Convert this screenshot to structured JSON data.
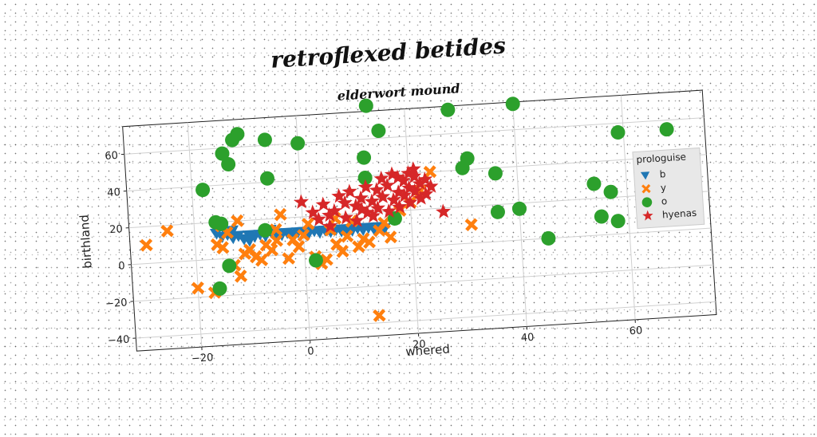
{
  "chart_data": {
    "type": "scatter",
    "title": "retroflexed betides",
    "subtitle": "elderwort mound",
    "xlabel": "whered",
    "ylabel": "birthland",
    "xlim": [
      -32,
      75
    ],
    "ylim": [
      -47,
      75
    ],
    "xticks": [
      -20,
      0,
      20,
      40,
      60
    ],
    "yticks": [
      -40,
      -20,
      0,
      20,
      40,
      60
    ],
    "grid": true,
    "legend": {
      "title": "prologuise",
      "placement": "right"
    },
    "series": [
      {
        "name": "b",
        "marker": "triangle-down",
        "color": "#1f77b4",
        "points": [
          [
            -16,
            14
          ],
          [
            -15,
            12
          ],
          [
            -14,
            13
          ],
          [
            -13,
            11
          ],
          [
            -12,
            12
          ],
          [
            -11,
            10
          ],
          [
            -10,
            12
          ],
          [
            -9,
            11
          ],
          [
            -8,
            12
          ],
          [
            -7,
            11
          ],
          [
            -6,
            13
          ],
          [
            -5,
            12
          ],
          [
            -4,
            11
          ],
          [
            -3,
            12
          ],
          [
            -2,
            11
          ],
          [
            -1,
            12
          ],
          [
            0,
            12
          ],
          [
            1,
            11
          ],
          [
            2,
            12
          ],
          [
            3,
            11
          ],
          [
            4,
            12
          ],
          [
            5,
            11
          ],
          [
            6,
            12
          ],
          [
            7,
            11
          ],
          [
            8,
            12
          ],
          [
            9,
            11
          ],
          [
            10,
            12
          ],
          [
            11,
            11
          ],
          [
            12,
            12
          ],
          [
            13,
            11
          ],
          [
            14,
            12
          ],
          [
            15,
            11
          ],
          [
            -13,
            15
          ],
          [
            -10,
            9
          ],
          [
            -6,
            14
          ],
          [
            -2,
            9
          ]
        ]
      },
      {
        "name": "y",
        "marker": "x",
        "color": "#ff7f0e",
        "points": [
          [
            -29,
            10
          ],
          [
            -25,
            17
          ],
          [
            -20,
            -15
          ],
          [
            -17,
            -18
          ],
          [
            -16,
            8
          ],
          [
            -15,
            6
          ],
          [
            -14,
            14
          ],
          [
            -13,
            -4
          ],
          [
            -12,
            -10
          ],
          [
            -11,
            2
          ],
          [
            -10,
            4
          ],
          [
            -9,
            0
          ],
          [
            -8,
            -2
          ],
          [
            -7,
            6
          ],
          [
            -6,
            3
          ],
          [
            -5,
            14
          ],
          [
            -4,
            22
          ],
          [
            -3,
            -2
          ],
          [
            -2,
            8
          ],
          [
            -1,
            4
          ],
          [
            0,
            10
          ],
          [
            2,
            -2
          ],
          [
            3,
            -6
          ],
          [
            4,
            -4
          ],
          [
            5,
            12
          ],
          [
            6,
            4
          ],
          [
            7,
            0
          ],
          [
            8,
            8
          ],
          [
            9,
            16
          ],
          [
            10,
            2
          ],
          [
            11,
            6
          ],
          [
            12,
            4
          ],
          [
            13,
            -36
          ],
          [
            14,
            10
          ],
          [
            15,
            14
          ],
          [
            16,
            6
          ],
          [
            18,
            20
          ],
          [
            20,
            24
          ],
          [
            22,
            30
          ],
          [
            24,
            40
          ],
          [
            31,
            10
          ],
          [
            -15,
            18
          ],
          [
            -12,
            20
          ],
          [
            -5,
            8
          ],
          [
            1,
            16
          ],
          [
            6,
            18
          ]
        ]
      },
      {
        "name": "o",
        "marker": "circle",
        "color": "#2ca02c",
        "points": [
          [
            -18,
            38
          ],
          [
            -16,
            20
          ],
          [
            -15,
            19
          ],
          [
            -14,
            -4
          ],
          [
            -16,
            -16
          ],
          [
            -14,
            57
          ],
          [
            -13,
            51
          ],
          [
            -12,
            64
          ],
          [
            -11,
            67
          ],
          [
            -7,
            14
          ],
          [
            -6,
            63
          ],
          [
            -6,
            42
          ],
          [
            0,
            60
          ],
          [
            2,
            -4
          ],
          [
            12,
            50
          ],
          [
            12,
            39
          ],
          [
            13,
            78
          ],
          [
            15,
            64
          ],
          [
            17,
            16
          ],
          [
            28,
            73
          ],
          [
            30,
            41
          ],
          [
            31,
            46
          ],
          [
            36,
            37
          ],
          [
            36,
            16
          ],
          [
            40,
            17
          ],
          [
            40,
            74
          ],
          [
            45,
            0
          ],
          [
            54,
            28
          ],
          [
            57,
            23
          ],
          [
            55,
            10
          ],
          [
            58,
            7
          ],
          [
            59,
            55
          ],
          [
            68,
            55
          ]
        ]
      },
      {
        "name": "hyenas",
        "marker": "star",
        "color": "#d62728",
        "points": [
          [
            0,
            28
          ],
          [
            2,
            22
          ],
          [
            3,
            18
          ],
          [
            4,
            26
          ],
          [
            5,
            14
          ],
          [
            6,
            22
          ],
          [
            7,
            30
          ],
          [
            8,
            26
          ],
          [
            8,
            18
          ],
          [
            9,
            32
          ],
          [
            10,
            24
          ],
          [
            10,
            16
          ],
          [
            11,
            28
          ],
          [
            12,
            20
          ],
          [
            12,
            34
          ],
          [
            13,
            26
          ],
          [
            13,
            18
          ],
          [
            14,
            32
          ],
          [
            14,
            22
          ],
          [
            15,
            38
          ],
          [
            15,
            28
          ],
          [
            16,
            20
          ],
          [
            16,
            34
          ],
          [
            17,
            40
          ],
          [
            17,
            26
          ],
          [
            18,
            30
          ],
          [
            18,
            22
          ],
          [
            19,
            36
          ],
          [
            19,
            28
          ],
          [
            20,
            40
          ],
          [
            20,
            32
          ],
          [
            20,
            24
          ],
          [
            21,
            38
          ],
          [
            21,
            30
          ],
          [
            22,
            34
          ],
          [
            22,
            26
          ],
          [
            23,
            36
          ],
          [
            23,
            28
          ],
          [
            24,
            32
          ],
          [
            26,
            18
          ],
          [
            5,
            20
          ],
          [
            11,
            22
          ],
          [
            18,
            38
          ],
          [
            21,
            42
          ]
        ]
      }
    ]
  }
}
